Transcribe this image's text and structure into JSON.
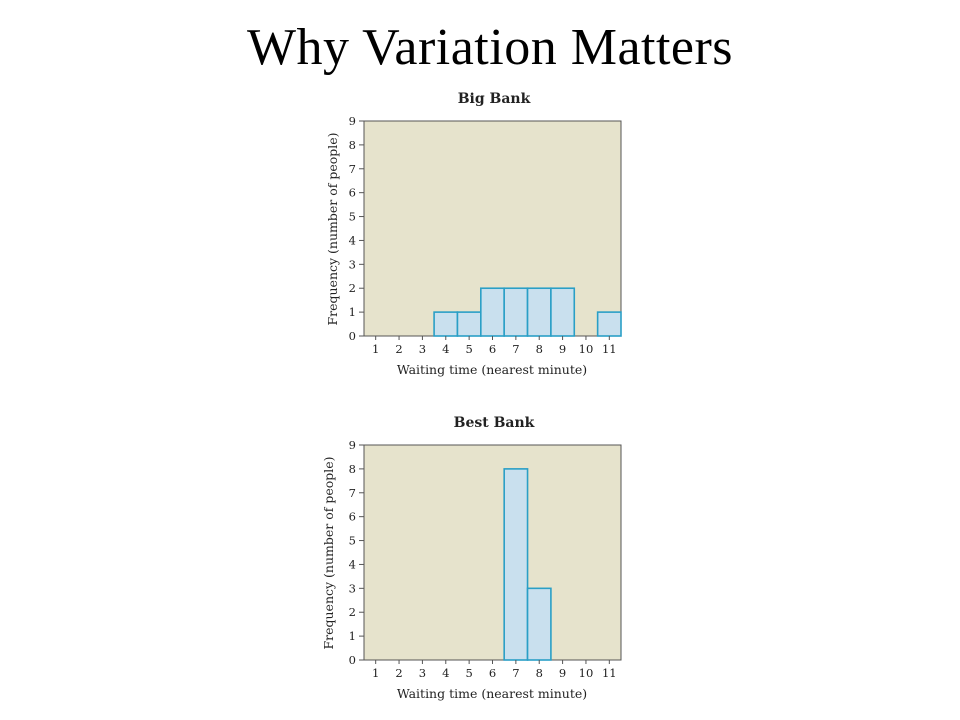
{
  "slide": {
    "title": "Why Variation Matters"
  },
  "chart_data": [
    {
      "type": "bar",
      "title": "Big Bank",
      "xlabel": "Waiting time (nearest minute)",
      "ylabel": "Frequency (number of people)",
      "categories": [
        "1",
        "2",
        "3",
        "4",
        "5",
        "6",
        "7",
        "8",
        "9",
        "10",
        "11"
      ],
      "values": [
        0,
        0,
        0,
        1,
        1,
        2,
        2,
        2,
        2,
        0,
        1
      ],
      "ylim": [
        0,
        9
      ],
      "yticks": [
        0,
        1,
        2,
        3,
        4,
        5,
        6,
        7,
        8,
        9
      ],
      "grid": false,
      "colors": {
        "bar_fill": "#c9e0ee",
        "bar_stroke": "#2a9fc6",
        "plot_bg": "#e6e3cc",
        "axis": "#555555"
      }
    },
    {
      "type": "bar",
      "title": "Best Bank",
      "xlabel": "Waiting time (nearest minute)",
      "ylabel": "Frequency (number of people)",
      "categories": [
        "1",
        "2",
        "3",
        "4",
        "5",
        "6",
        "7",
        "8",
        "9",
        "10",
        "11"
      ],
      "values": [
        0,
        0,
        0,
        0,
        0,
        0,
        8,
        3,
        0,
        0,
        0
      ],
      "ylim": [
        0,
        9
      ],
      "yticks": [
        0,
        1,
        2,
        3,
        4,
        5,
        6,
        7,
        8,
        9
      ],
      "grid": false,
      "colors": {
        "bar_fill": "#c9e0ee",
        "bar_stroke": "#2a9fc6",
        "plot_bg": "#e6e3cc",
        "axis": "#555555"
      }
    }
  ]
}
